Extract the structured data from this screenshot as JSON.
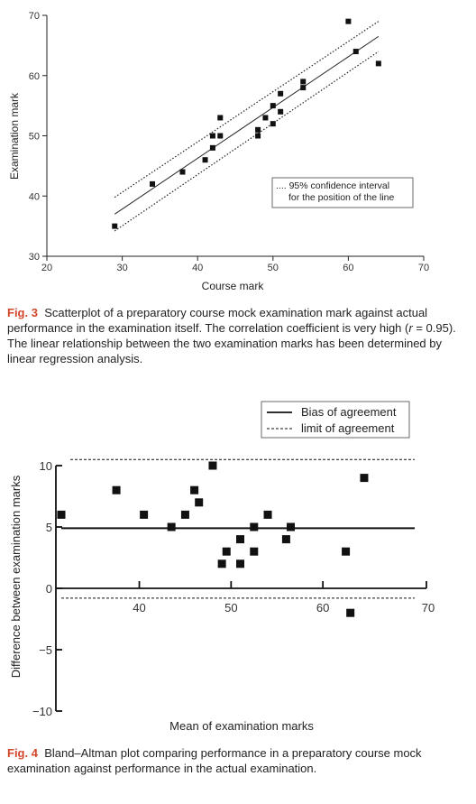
{
  "chart_data": [
    {
      "type": "scatter",
      "xlabel": "Course mark",
      "ylabel": "Examination mark",
      "xlim": [
        20,
        70
      ],
      "ylim": [
        30,
        70
      ],
      "xticks": [
        20,
        30,
        40,
        50,
        60,
        70
      ],
      "yticks": [
        30,
        40,
        50,
        60,
        70
      ],
      "grid": false,
      "legend": {
        "placement": "lower-right",
        "lines": [
          "95% confidence interval",
          "for the position of the line"
        ]
      },
      "points": [
        {
          "x": 29,
          "y": 35
        },
        {
          "x": 34,
          "y": 42
        },
        {
          "x": 38,
          "y": 44
        },
        {
          "x": 41,
          "y": 46
        },
        {
          "x": 42,
          "y": 48
        },
        {
          "x": 42,
          "y": 50
        },
        {
          "x": 43,
          "y": 50
        },
        {
          "x": 43,
          "y": 53
        },
        {
          "x": 48,
          "y": 50
        },
        {
          "x": 48,
          "y": 51
        },
        {
          "x": 49,
          "y": 53
        },
        {
          "x": 50,
          "y": 52
        },
        {
          "x": 50,
          "y": 55
        },
        {
          "x": 51,
          "y": 54
        },
        {
          "x": 51,
          "y": 57
        },
        {
          "x": 54,
          "y": 58
        },
        {
          "x": 54,
          "y": 59
        },
        {
          "x": 60,
          "y": 69
        },
        {
          "x": 61,
          "y": 64
        },
        {
          "x": 64,
          "y": 62
        }
      ],
      "regression_line": {
        "x": [
          29,
          64
        ],
        "y": [
          37,
          66.5
        ]
      },
      "ci_upper": {
        "x": [
          29,
          64
        ],
        "y": [
          39.8,
          69
        ]
      },
      "ci_lower": {
        "x": [
          29,
          64
        ],
        "y": [
          34.2,
          64
        ]
      },
      "caption_label": "Fig. 3",
      "caption_pre": "Scatterplot of a preparatory course mock examination mark against actual performance in the examination itself. The correlation coefficient is very high (",
      "caption_r": "r",
      "caption_post": " = 0.95). The linear relationship between the two examination marks has been determined by linear regression analysis."
    },
    {
      "type": "scatter",
      "xlabel": "Mean of examination marks",
      "ylabel": "Difference between examination marks",
      "xlim": [
        30,
        70
      ],
      "ylim": [
        -10,
        10
      ],
      "xticks": [
        40,
        50,
        60,
        70
      ],
      "yticks": [
        -10,
        -5,
        0,
        5,
        10
      ],
      "ytick_labels": [
        "−10",
        "−5",
        "0",
        "5",
        "10"
      ],
      "grid": false,
      "legend": {
        "placement": "top-right",
        "entries": [
          {
            "label": "Bias of agreement",
            "style": "solid"
          },
          {
            "label": "limit of agreement",
            "style": "dashed"
          }
        ]
      },
      "bias": 4.9,
      "upper_limit": 10.5,
      "lower_limit": -0.8,
      "points": [
        {
          "x": 31.5,
          "y": 6
        },
        {
          "x": 37.5,
          "y": 8
        },
        {
          "x": 40.5,
          "y": 6
        },
        {
          "x": 43.5,
          "y": 5
        },
        {
          "x": 45,
          "y": 6
        },
        {
          "x": 46,
          "y": 8
        },
        {
          "x": 46.5,
          "y": 7
        },
        {
          "x": 48,
          "y": 10
        },
        {
          "x": 49,
          "y": 2
        },
        {
          "x": 49.5,
          "y": 3
        },
        {
          "x": 51,
          "y": 2
        },
        {
          "x": 51,
          "y": 4
        },
        {
          "x": 52.5,
          "y": 3
        },
        {
          "x": 52.5,
          "y": 5
        },
        {
          "x": 54,
          "y": 6
        },
        {
          "x": 56,
          "y": 4
        },
        {
          "x": 56.5,
          "y": 5
        },
        {
          "x": 62.5,
          "y": 3
        },
        {
          "x": 63,
          "y": -2
        },
        {
          "x": 64.5,
          "y": 9
        }
      ],
      "caption_label": "Fig. 4",
      "caption_text": "Bland–Altman plot comparing performance in a preparatory course mock examination against performance in the actual examination."
    }
  ]
}
